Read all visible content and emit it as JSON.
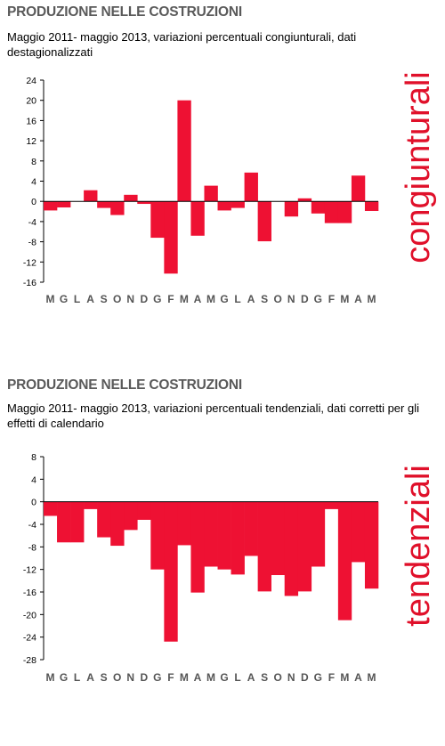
{
  "charts": [
    {
      "title": "PRODUZIONE NELLE COSTRUZIONI",
      "subtitle": "Maggio 2011- maggio 2013, variazioni percentuali congiunturali, dati destagionalizzati",
      "side_label": "congiunturali"
    },
    {
      "title": "PRODUZIONE NELLE COSTRUZIONI",
      "subtitle": "Maggio 2011- maggio 2013, variazioni percentuali tendenziali, dati corretti per gli effetti di calendario",
      "side_label": "tendenziali"
    }
  ],
  "chart_data": [
    {
      "type": "bar",
      "title": "PRODUZIONE NELLE COSTRUZIONI",
      "categories": [
        "M",
        "G",
        "L",
        "A",
        "S",
        "O",
        "N",
        "D",
        "G",
        "F",
        "M",
        "A",
        "M",
        "G",
        "L",
        "A",
        "S",
        "O",
        "N",
        "D",
        "G",
        "F",
        "M",
        "A",
        "M"
      ],
      "values": [
        -1.8,
        -1.2,
        0,
        2.2,
        -1.3,
        -2.7,
        1.3,
        -0.5,
        -7.2,
        -14.3,
        20,
        -6.8,
        3.1,
        -1.8,
        -1.3,
        5.7,
        -7.9,
        0,
        -3,
        0.6,
        -2.4,
        -4.3,
        -4.3,
        5.1,
        -1.9
      ],
      "ylim": [
        -16,
        24
      ],
      "yticks": [
        24,
        20,
        16,
        12,
        8,
        4,
        0,
        -4,
        -8,
        -12,
        -16
      ],
      "color": "#ee1133"
    },
    {
      "type": "bar",
      "title": "PRODUZIONE NELLE COSTRUZIONI",
      "categories": [
        "M",
        "G",
        "L",
        "A",
        "S",
        "O",
        "N",
        "D",
        "G",
        "F",
        "M",
        "A",
        "M",
        "G",
        "L",
        "A",
        "S",
        "O",
        "N",
        "D",
        "G",
        "F",
        "M",
        "A",
        "M"
      ],
      "values": [
        -2.5,
        -7.2,
        -7.2,
        -1.3,
        -6.3,
        -7.8,
        -5,
        -3.2,
        -12,
        -24.8,
        -7.7,
        -16.1,
        -11.5,
        -12,
        -12.9,
        -9.6,
        -15.9,
        -13,
        -16.7,
        -15.9,
        -11.5,
        -1.3,
        -21,
        -10.7,
        -15.4
      ],
      "ylim": [
        -28,
        8
      ],
      "yticks": [
        8,
        4,
        0,
        -4,
        -8,
        -12,
        -16,
        -20,
        -24,
        -28
      ],
      "color": "#ee1133"
    }
  ]
}
